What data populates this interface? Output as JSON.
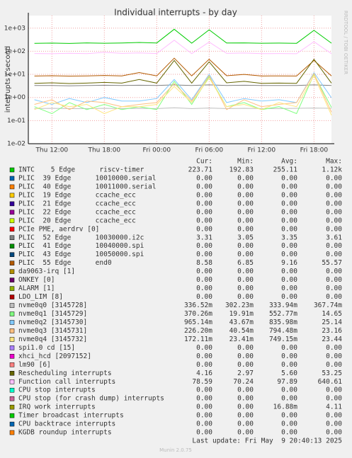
{
  "chart_data": {
    "type": "line",
    "title": "Individual interrupts - by day",
    "y_label": "interrupts / second",
    "side_text": "RRDTOOL / TOBI OETIKER",
    "log_y": true,
    "grid": true,
    "ylim": [
      0.01,
      3500
    ],
    "yticks": [
      {
        "value": 0.01,
        "label": "1e-02"
      },
      {
        "value": 0.1,
        "label": "1e-01"
      },
      {
        "value": 1,
        "label": "1e+00"
      },
      {
        "value": 10,
        "label": "1e+01"
      },
      {
        "value": 100,
        "label": "1e+02"
      },
      {
        "value": 1000,
        "label": "1e+03"
      }
    ],
    "xlim": [
      9.3,
      44.0
    ],
    "xticks": [
      {
        "value": 12,
        "label": "Thu 12:00"
      },
      {
        "value": 18,
        "label": "Thu 18:00"
      },
      {
        "value": 24,
        "label": "Fri 00:00"
      },
      {
        "value": 30,
        "label": "Fri 06:00"
      },
      {
        "value": 36,
        "label": "Fri 12:00"
      },
      {
        "value": 42,
        "label": "Fri 18:00"
      }
    ],
    "x": [
      10,
      12,
      14,
      16,
      18,
      20,
      22,
      24,
      26,
      28,
      30,
      32,
      34,
      36,
      38,
      40,
      42,
      44
    ],
    "columns": [
      "Cur:",
      "Min:",
      "Avg:",
      "Max:"
    ],
    "series": [
      {
        "name": "INTC    5 Edge      riscv-timer",
        "color": "#00cc00",
        "cur": "223.71",
        "min": "192.83",
        "avg": "255.11",
        "max": "1.12k",
        "values": [
          220,
          225,
          218,
          230,
          222,
          226,
          240,
          228,
          900,
          224,
          850,
          226,
          230,
          222,
          225,
          221,
          800,
          224
        ]
      },
      {
        "name": "PLIC  39 Edge      10010000.serial",
        "color": "#0066b3",
        "cur": "0.00",
        "min": "0.00",
        "avg": "0.00",
        "max": "0.00"
      },
      {
        "name": "PLIC  40 Edge      10011000.serial",
        "color": "#ff8000",
        "cur": "0.00",
        "min": "0.00",
        "avg": "0.00",
        "max": "0.00"
      },
      {
        "name": "PLIC  19 Edge      ccache_ecc",
        "color": "#ffcc00",
        "cur": "0.00",
        "min": "0.00",
        "avg": "0.00",
        "max": "0.00"
      },
      {
        "name": "PLIC  21 Edge      ccache_ecc",
        "color": "#330099",
        "cur": "0.00",
        "min": "0.00",
        "avg": "0.00",
        "max": "0.00"
      },
      {
        "name": "PLIC  22 Edge      ccache_ecc",
        "color": "#990099",
        "cur": "0.00",
        "min": "0.00",
        "avg": "0.00",
        "max": "0.00"
      },
      {
        "name": "PLIC  20 Edge      ccache_ecc",
        "color": "#ccff00",
        "cur": "0.00",
        "min": "0.00",
        "avg": "0.00",
        "max": "0.00"
      },
      {
        "name": "PCIe PME, aerdrv [0]",
        "color": "#ff0000",
        "cur": "0.00",
        "min": "0.00",
        "avg": "0.00",
        "max": "0.00"
      },
      {
        "name": "PLIC  52 Edge      10030000.i2c",
        "color": "#808080",
        "cur": "3.31",
        "min": "3.05",
        "avg": "3.35",
        "max": "3.61",
        "values": [
          3.3,
          3.3,
          3.2,
          3.3,
          3.4,
          3.3,
          3.4,
          3.3,
          3.5,
          3.3,
          3.5,
          3.3,
          3.4,
          3.3,
          3.3,
          3.3,
          3.5,
          3.3
        ]
      },
      {
        "name": "PLIC  41 Edge      10040000.spi",
        "color": "#008f00",
        "cur": "0.00",
        "min": "0.00",
        "avg": "0.00",
        "max": "0.00"
      },
      {
        "name": "PLIC  43 Edge      10050000.spi",
        "color": "#00487d",
        "cur": "0.00",
        "min": "0.00",
        "avg": "0.00",
        "max": "0.00"
      },
      {
        "name": "PLIC  55 Edge      end0",
        "color": "#b35a00",
        "cur": "8.58",
        "min": "6.85",
        "avg": "9.16",
        "max": "55.57",
        "values": [
          8.5,
          8.7,
          8.4,
          8.6,
          9,
          8.6,
          12,
          8.6,
          50,
          8.6,
          45,
          8.7,
          10,
          8.5,
          8.6,
          8.5,
          40,
          8.6
        ]
      },
      {
        "name": "da9063-irq [1]",
        "color": "#b38f00",
        "cur": "0.00",
        "min": "0.00",
        "avg": "0.00",
        "max": "0.00"
      },
      {
        "name": "ONKEY [0]",
        "color": "#6b006b",
        "cur": "0.00",
        "min": "0.00",
        "avg": "0.00",
        "max": "0.00"
      },
      {
        "name": "ALARM [1]",
        "color": "#8fb300",
        "cur": "0.00",
        "min": "0.00",
        "avg": "0.00",
        "max": "0.00"
      },
      {
        "name": "LDO_LIM [8]",
        "color": "#b30000",
        "cur": "0.00",
        "min": "0.00",
        "avg": "0.00",
        "max": "0.00"
      },
      {
        "name": "nvme0q0 [3145728]",
        "color": "#bebebe",
        "cur": "336.52m",
        "min": "302.23m",
        "avg": "333.94m",
        "max": "367.74m",
        "values": [
          0.33,
          0.34,
          0.33,
          0.33,
          0.34,
          0.33,
          0.34,
          0.33,
          0.36,
          0.33,
          0.35,
          0.33,
          0.34,
          0.33,
          0.33,
          0.34,
          0.35,
          0.34
        ]
      },
      {
        "name": "nvme0q1 [3145729]",
        "color": "#80ff80",
        "cur": "370.26m",
        "min": "19.91m",
        "avg": "552.77m",
        "max": "14.65",
        "values": [
          0.4,
          0.2,
          0.6,
          0.3,
          0.5,
          0.3,
          0.4,
          0.3,
          5,
          0.5,
          8,
          0.4,
          0.6,
          0.3,
          0.4,
          0.2,
          10,
          0.37
        ]
      },
      {
        "name": "nvme0q2 [3145730]",
        "color": "#80c9ff",
        "cur": "965.14m",
        "min": "43.67m",
        "avg": "835.98m",
        "max": "25.14",
        "values": [
          0.8,
          0.5,
          0.9,
          0.6,
          1,
          0.7,
          0.7,
          0.9,
          6,
          0.8,
          10,
          0.6,
          0.9,
          0.7,
          0.8,
          0.6,
          12,
          0.97
        ]
      },
      {
        "name": "nvme0q3 [3145731]",
        "color": "#ffc080",
        "cur": "226.20m",
        "min": "40.54m",
        "avg": "794.48m",
        "max": "23.16",
        "values": [
          0.5,
          0.8,
          0.3,
          0.7,
          0.6,
          0.4,
          0.5,
          0.6,
          4,
          0.7,
          9,
          0.3,
          0.8,
          0.4,
          0.5,
          0.6,
          11,
          0.23
        ]
      },
      {
        "name": "nvme0q4 [3145732]",
        "color": "#ffe680",
        "cur": "172.11m",
        "min": "23.41m",
        "avg": "749.15m",
        "max": "23.44",
        "values": [
          0.3,
          0.6,
          0.4,
          0.5,
          0.2,
          0.4,
          0.4,
          0.5,
          3,
          0.6,
          7,
          0.4,
          0.5,
          0.3,
          0.6,
          0.4,
          9,
          0.17
        ]
      },
      {
        "name": "spi1.0 cd [15]",
        "color": "#aa80ff",
        "cur": "0.00",
        "min": "0.00",
        "avg": "0.00",
        "max": "0.00"
      },
      {
        "name": "xhci_hcd [2097152]",
        "color": "#ee00cc",
        "cur": "0.00",
        "min": "0.00",
        "avg": "0.00",
        "max": "0.00"
      },
      {
        "name": "lm90 [6]",
        "color": "#ff8080",
        "cur": "0.00",
        "min": "0.00",
        "avg": "0.00",
        "max": "0.00"
      },
      {
        "name": "Rescheduling interrupts",
        "color": "#666600",
        "cur": "4.16",
        "min": "2.97",
        "avg": "5.60",
        "max": "53.25",
        "values": [
          4.1,
          4.3,
          4,
          4.2,
          4.5,
          4.2,
          6,
          4.2,
          40,
          4.2,
          35,
          4.3,
          5,
          4.1,
          4.2,
          4.1,
          45,
          4.2
        ]
      },
      {
        "name": "Function call interrupts",
        "color": "#ffbfff",
        "cur": "78.59",
        "min": "70.24",
        "avg": "97.89",
        "max": "640.61",
        "values": [
          80,
          78,
          82,
          79,
          90,
          81,
          85,
          80,
          300,
          79,
          250,
          81,
          84,
          79,
          80,
          78,
          260,
          79
        ]
      },
      {
        "name": "CPU stop interrupts",
        "color": "#00ffcc",
        "cur": "0.00",
        "min": "0.00",
        "avg": "0.00",
        "max": "0.00"
      },
      {
        "name": "CPU stop (for crash dump) interrupts",
        "color": "#cc6699",
        "cur": "0.00",
        "min": "0.00",
        "avg": "0.00",
        "max": "0.00"
      },
      {
        "name": "IRQ work interrupts",
        "color": "#999900",
        "cur": "0.00",
        "min": "0.00",
        "avg": "16.88m",
        "max": "4.11"
      },
      {
        "name": "Timer broadcast interrupts",
        "color": "#00cc00",
        "cur": "0.00",
        "min": "0.00",
        "avg": "0.00",
        "max": "0.00"
      },
      {
        "name": "CPU backtrace interrupts",
        "color": "#0066b3",
        "cur": "0.00",
        "min": "0.00",
        "avg": "0.00",
        "max": "0.00"
      },
      {
        "name": "KGDB roundup interrupts",
        "color": "#ff8000",
        "cur": "0.00",
        "min": "0.00",
        "avg": "0.00",
        "max": "0.00"
      }
    ],
    "last_update": "Last update: Fri May  9 20:40:13 2025",
    "footer": "Munin 2.0.75"
  }
}
